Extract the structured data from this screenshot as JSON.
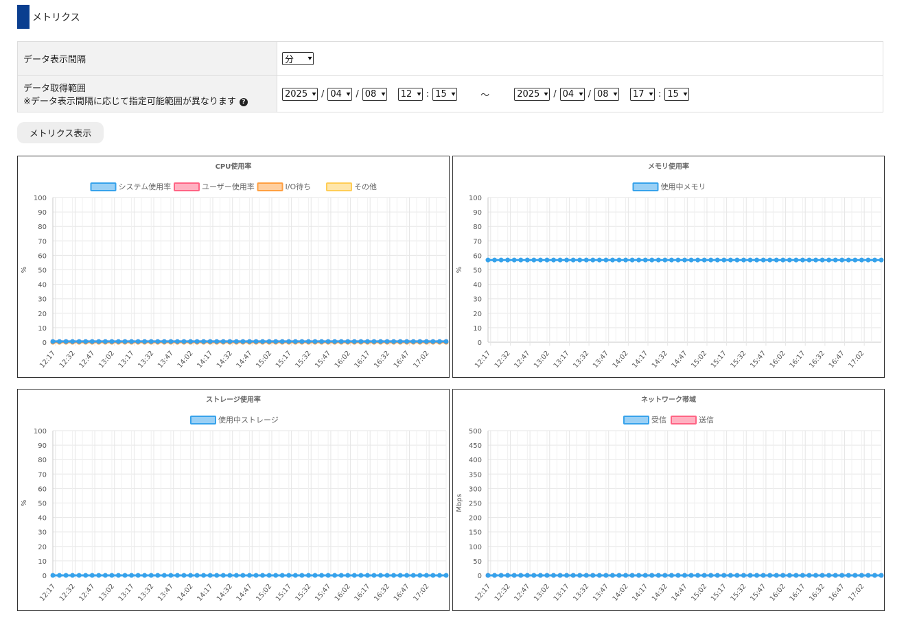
{
  "page": {
    "title": "メトリクス",
    "accent_color": "#0a3e8f"
  },
  "settings": {
    "interval_label": "データ表示間隔",
    "interval_value": "分",
    "range_label": "データ取得範囲",
    "range_note": "※データ表示間隔に応じて指定可能範囲が異なります",
    "help_icon": "?",
    "slash": "/",
    "colon": ":",
    "tilde": "～",
    "from": {
      "year": "2025",
      "month": "04",
      "day": "08",
      "hour": "12",
      "minute": "15"
    },
    "to": {
      "year": "2025",
      "month": "04",
      "day": "08",
      "hour": "17",
      "minute": "15"
    }
  },
  "show_button": "メトリクス表示",
  "charts": [
    {
      "title": "CPU使用率",
      "ylabel": "%",
      "legend": [
        {
          "name": "システム使用率",
          "stroke": "#36a2eb",
          "fill": "#9ad0f5"
        },
        {
          "name": "ユーザー使用率",
          "stroke": "#ff6384",
          "fill": "#ffb1c1"
        },
        {
          "name": "I/O待ち",
          "stroke": "#ff9f40",
          "fill": "#ffcf9f"
        },
        {
          "name": "その他",
          "stroke": "#ffcd56",
          "fill": "#ffe6aa"
        }
      ]
    },
    {
      "title": "メモリ使用率",
      "ylabel": "%",
      "legend": [
        {
          "name": "使用中メモリ",
          "stroke": "#36a2eb",
          "fill": "#9ad0f5"
        }
      ]
    },
    {
      "title": "ストレージ使用率",
      "ylabel": "%",
      "legend": [
        {
          "name": "使用中ストレージ",
          "stroke": "#36a2eb",
          "fill": "#9ad0f5"
        }
      ]
    },
    {
      "title": "ネットワーク帯域",
      "ylabel": "Mbps",
      "legend": [
        {
          "name": "受信",
          "stroke": "#36a2eb",
          "fill": "#9ad0f5"
        },
        {
          "name": "送信",
          "stroke": "#ff6384",
          "fill": "#ffb1c1"
        }
      ]
    }
  ],
  "chart_data": [
    {
      "type": "line",
      "title": "CPU使用率",
      "ylabel": "%",
      "ylim": [
        0,
        100
      ],
      "yticks": [
        0,
        10,
        20,
        30,
        40,
        50,
        60,
        70,
        80,
        90,
        100
      ],
      "x_tick_labels": [
        "12:17",
        "12:32",
        "12:47",
        "13:02",
        "13:17",
        "13:32",
        "13:47",
        "14:02",
        "14:17",
        "14:32",
        "14:47",
        "15:02",
        "15:17",
        "15:32",
        "15:47",
        "16:02",
        "16:17",
        "16:32",
        "16:47",
        "17:02"
      ],
      "x_range_minutes": [
        "12:15",
        "17:15"
      ],
      "point_count": 61,
      "grid": true,
      "legend_position": "top",
      "series": [
        {
          "name": "システム使用率",
          "color": "#36a2eb",
          "value": 0.5
        },
        {
          "name": "ユーザー使用率",
          "color": "#ff6384",
          "value": 0.5
        },
        {
          "name": "I/O待ち",
          "color": "#ff9f40",
          "value": 0
        },
        {
          "name": "その他",
          "color": "#ffcd56",
          "value": 0
        }
      ]
    },
    {
      "type": "line",
      "title": "メモリ使用率",
      "ylabel": "%",
      "ylim": [
        0,
        100
      ],
      "yticks": [
        0,
        10,
        20,
        30,
        40,
        50,
        60,
        70,
        80,
        90,
        100
      ],
      "x_tick_labels": [
        "12:17",
        "12:32",
        "12:47",
        "13:02",
        "13:17",
        "13:32",
        "13:47",
        "14:02",
        "14:17",
        "14:32",
        "14:47",
        "15:02",
        "15:17",
        "15:32",
        "15:47",
        "16:02",
        "16:17",
        "16:32",
        "16:47",
        "17:02"
      ],
      "x_range_minutes": [
        "12:15",
        "17:15"
      ],
      "point_count": 61,
      "grid": true,
      "legend_position": "top",
      "series": [
        {
          "name": "使用中メモリ",
          "color": "#36a2eb",
          "value": 56.8
        }
      ]
    },
    {
      "type": "line",
      "title": "ストレージ使用率",
      "ylabel": "%",
      "ylim": [
        0,
        100
      ],
      "yticks": [
        0,
        10,
        20,
        30,
        40,
        50,
        60,
        70,
        80,
        90,
        100
      ],
      "x_tick_labels": [
        "12:17",
        "12:32",
        "12:47",
        "13:02",
        "13:17",
        "13:32",
        "13:47",
        "14:02",
        "14:17",
        "14:32",
        "14:47",
        "15:02",
        "15:17",
        "15:32",
        "15:47",
        "16:02",
        "16:17",
        "16:32",
        "16:47",
        "17:02"
      ],
      "x_range_minutes": [
        "12:15",
        "17:15"
      ],
      "point_count": 61,
      "grid": true,
      "legend_position": "top",
      "series": [
        {
          "name": "使用中ストレージ",
          "color": "#36a2eb",
          "value": 0
        }
      ]
    },
    {
      "type": "line",
      "title": "ネットワーク帯域",
      "ylabel": "Mbps",
      "ylim": [
        0,
        500
      ],
      "yticks": [
        0,
        50,
        100,
        150,
        200,
        250,
        300,
        350,
        400,
        450,
        500
      ],
      "x_tick_labels": [
        "12:17",
        "12:32",
        "12:47",
        "13:02",
        "13:17",
        "13:32",
        "13:47",
        "14:02",
        "14:17",
        "14:32",
        "14:47",
        "15:02",
        "15:17",
        "15:32",
        "15:47",
        "16:02",
        "16:17",
        "16:32",
        "16:47",
        "17:02"
      ],
      "x_range_minutes": [
        "12:15",
        "17:15"
      ],
      "point_count": 61,
      "grid": true,
      "legend_position": "top",
      "series": [
        {
          "name": "受信",
          "color": "#36a2eb",
          "value": 0
        },
        {
          "name": "送信",
          "color": "#ff6384",
          "value": 0
        }
      ]
    }
  ]
}
